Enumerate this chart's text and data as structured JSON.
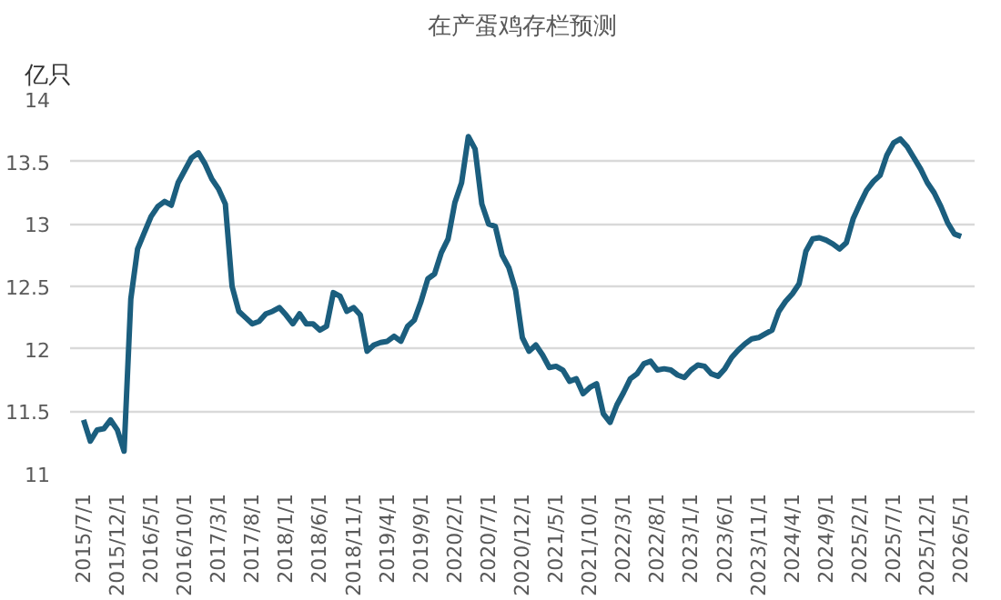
{
  "chart_data": {
    "type": "line",
    "title": "在产蛋鸡存栏预测",
    "ylabel": "亿只",
    "categories": [
      "2015/7/1",
      null,
      null,
      null,
      null,
      "2015/12/1",
      null,
      null,
      null,
      null,
      "2016/5/1",
      null,
      null,
      null,
      null,
      "2016/10/1",
      null,
      null,
      null,
      null,
      "2017/3/1",
      null,
      null,
      null,
      null,
      "2017/8/1",
      null,
      null,
      null,
      null,
      "2018/1/1",
      null,
      null,
      null,
      null,
      "2018/6/1",
      null,
      null,
      null,
      null,
      "2018/11/1",
      null,
      null,
      null,
      null,
      "2019/4/1",
      null,
      null,
      null,
      null,
      "2019/9/1",
      null,
      null,
      null,
      null,
      "2020/2/1",
      null,
      null,
      null,
      null,
      "2020/7/1",
      null,
      null,
      null,
      null,
      "2020/12/1",
      null,
      null,
      null,
      null,
      "2021/5/1",
      null,
      null,
      null,
      null,
      "2021/10/1",
      null,
      null,
      null,
      null,
      "2022/3/1",
      null,
      null,
      null,
      null,
      "2022/8/1",
      null,
      null,
      null,
      null,
      "2023/1/1",
      null,
      null,
      null,
      null,
      "2023/6/1",
      null,
      null,
      null,
      null,
      "2023/11/1",
      null,
      null,
      null,
      null,
      "2024/4/1",
      null,
      null,
      null,
      null,
      "2024/9/1",
      null,
      null,
      null,
      null,
      "2025/2/1",
      null,
      null,
      null,
      null,
      "2025/7/1",
      null,
      null,
      null,
      null,
      "2025/12/1",
      null,
      null,
      null,
      null,
      "2026/5/1"
    ],
    "series": [
      {
        "color": "#1b5e7e",
        "values": [
          11.43,
          11.26,
          11.35,
          11.36,
          11.43,
          11.35,
          11.18,
          12.4,
          12.8,
          12.93,
          13.06,
          13.14,
          13.18,
          13.15,
          13.33,
          13.43,
          13.53,
          13.57,
          13.48,
          13.36,
          13.28,
          13.16,
          12.5,
          12.3,
          12.25,
          12.2,
          12.22,
          12.28,
          12.3,
          12.33,
          12.27,
          12.2,
          12.28,
          12.2,
          12.2,
          12.15,
          12.18,
          12.45,
          12.42,
          12.3,
          12.33,
          12.27,
          11.98,
          12.03,
          12.05,
          12.06,
          12.1,
          12.06,
          12.18,
          12.23,
          12.38,
          12.56,
          12.6,
          12.77,
          12.88,
          13.17,
          13.33,
          13.7,
          13.6,
          13.16,
          13.0,
          12.98,
          12.75,
          12.65,
          12.47,
          12.09,
          11.98,
          12.03,
          11.95,
          11.85,
          11.86,
          11.83,
          11.74,
          11.76,
          11.64,
          11.69,
          11.72,
          11.48,
          11.41,
          11.55,
          11.65,
          11.76,
          11.8,
          11.88,
          11.9,
          11.83,
          11.84,
          11.83,
          11.79,
          11.77,
          11.83,
          11.87,
          11.86,
          11.8,
          11.78,
          11.84,
          11.93,
          11.99,
          12.04,
          12.08,
          12.09,
          12.12,
          12.15,
          12.3,
          12.38,
          12.44,
          12.52,
          12.78,
          12.88,
          12.89,
          12.87,
          12.84,
          12.8,
          12.85,
          13.04,
          13.16,
          13.27,
          13.34,
          13.39,
          13.55,
          13.65,
          13.68,
          13.62,
          13.53,
          13.44,
          13.33,
          13.25,
          13.14,
          13.01,
          12.92,
          12.9
        ]
      }
    ],
    "ylim": [
      11,
      14
    ],
    "yticks": [
      11,
      11.5,
      12,
      12.5,
      13,
      13.5,
      14
    ],
    "grid": "y"
  }
}
